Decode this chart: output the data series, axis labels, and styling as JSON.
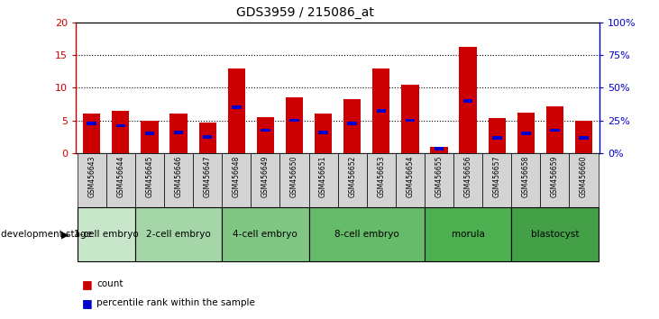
{
  "title": "GDS3959 / 215086_at",
  "samples": [
    "GSM456643",
    "GSM456644",
    "GSM456645",
    "GSM456646",
    "GSM456647",
    "GSM456648",
    "GSM456649",
    "GSM456650",
    "GSM456651",
    "GSM456652",
    "GSM456653",
    "GSM456654",
    "GSM456655",
    "GSM456656",
    "GSM456657",
    "GSM456658",
    "GSM456659",
    "GSM456660"
  ],
  "count_values": [
    6.1,
    6.5,
    5.0,
    6.0,
    4.7,
    13.0,
    5.5,
    8.5,
    6.0,
    8.3,
    13.0,
    10.5,
    1.0,
    16.3,
    5.3,
    6.2,
    7.2,
    5.0
  ],
  "percentile_values": [
    4.5,
    4.2,
    3.0,
    3.2,
    2.5,
    7.0,
    3.5,
    5.0,
    3.2,
    4.5,
    6.5,
    5.0,
    0.7,
    8.0,
    2.3,
    3.0,
    3.5,
    2.3
  ],
  "stages": [
    {
      "name": "1-cell embryo",
      "start": 0,
      "end": 2,
      "color": "#c8e6c9"
    },
    {
      "name": "2-cell embryo",
      "start": 2,
      "end": 5,
      "color": "#a5d6a7"
    },
    {
      "name": "4-cell embryo",
      "start": 5,
      "end": 8,
      "color": "#81c784"
    },
    {
      "name": "8-cell embryo",
      "start": 8,
      "end": 12,
      "color": "#66bb6a"
    },
    {
      "name": "morula",
      "start": 12,
      "end": 15,
      "color": "#4caf50"
    },
    {
      "name": "blastocyst",
      "start": 15,
      "end": 18,
      "color": "#43a047"
    }
  ],
  "bar_color": "#cc0000",
  "percentile_color": "#0000cc",
  "ylim_left": [
    0,
    20
  ],
  "ylim_right": [
    0,
    100
  ],
  "yticks_left": [
    0,
    5,
    10,
    15,
    20
  ],
  "yticks_right": [
    0,
    25,
    50,
    75,
    100
  ],
  "ytick_labels_right": [
    "0%",
    "25%",
    "50%",
    "75%",
    "100%"
  ],
  "title_fontsize": 10,
  "axis_color_left": "#cc0000",
  "axis_color_right": "#0000cc",
  "tick_gray_bg": "#d4d4d4",
  "stage_border_color": "#000000"
}
